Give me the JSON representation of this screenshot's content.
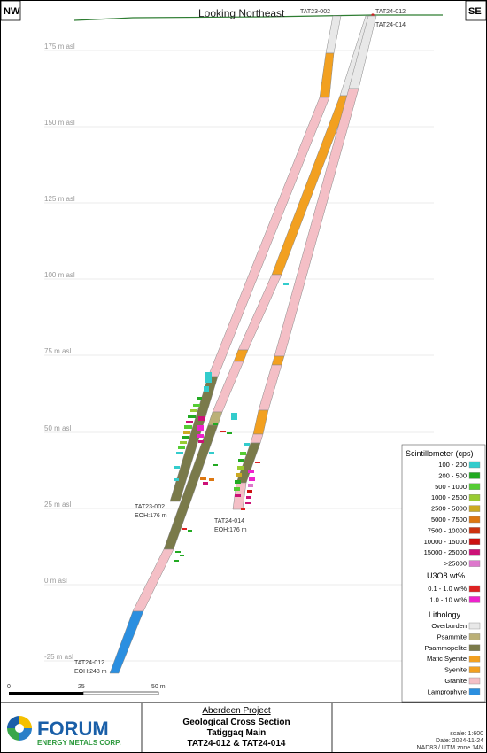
{
  "header": {
    "title": "Looking Northeast",
    "corner_left": "NW",
    "corner_right": "SE"
  },
  "elevation_labels": [
    "175  m asl",
    "150  m asl",
    "125  m asl",
    "100  m asl",
    "75  m asl",
    "50  m asl",
    "25  m asl",
    "0  m asl",
    "-25  m asl"
  ],
  "drillholes": {
    "tat23_002": {
      "collar_label": "TAT23-002",
      "end_label": "TAT23-002",
      "eoh": "EOH:176  m"
    },
    "tat24_012": {
      "collar_label": "TAT24-012",
      "end_label": "TAT24-012",
      "eoh": "EOH:248  m"
    },
    "tat24_014": {
      "collar_label": "TAT24-014",
      "end_label": "TAT24-014",
      "eoh": "EOH:176  m"
    }
  },
  "scale_bar": {
    "labels": [
      "0",
      "25",
      "50 m"
    ]
  },
  "legend": {
    "scint_title": "Scintillometer (cps)",
    "scint_items": [
      {
        "label": "100 - 200",
        "color": "#33cccc"
      },
      {
        "label": "200 - 500",
        "color": "#22aa22"
      },
      {
        "label": "500 - 1000",
        "color": "#55cc33"
      },
      {
        "label": "1000 - 2500",
        "color": "#99cc33"
      },
      {
        "label": "2500 - 5000",
        "color": "#ccaa22"
      },
      {
        "label": "5000 - 7500",
        "color": "#dd7711"
      },
      {
        "label": "7500 - 10000",
        "color": "#cc3311"
      },
      {
        "label": "10000 - 15000",
        "color": "#cc1111"
      },
      {
        "label": "15000 - 25000",
        "color": "#cc1177"
      },
      {
        "label": ">25000",
        "color": "#dd77cc"
      }
    ],
    "u3o8_title": "U3O8 wt%",
    "u3o8_items": [
      {
        "label": "0.1 - 1.0 wt%",
        "color": "#dd2222"
      },
      {
        "label": "1.0 - 10 wt%",
        "color": "#ee22cc"
      }
    ],
    "litho_title": "Lithology",
    "litho_items": [
      {
        "label": "Overburden",
        "color": "#e8e8e8"
      },
      {
        "label": "Psammite",
        "color": "#bbb077"
      },
      {
        "label": "Psammopelite",
        "color": "#7a7a4a"
      },
      {
        "label": "Mafic Syenite",
        "color": "#f2a020"
      },
      {
        "label": "Syenite",
        "color": "#f2a020"
      },
      {
        "label": "Granite",
        "color": "#f4bfc6"
      },
      {
        "label": "Lamprophyre",
        "color": "#2b8fe0"
      }
    ]
  },
  "title_block": {
    "company_name": "FORUM",
    "company_sub": "ENERGY METALS CORP.",
    "project": "Aberdeen Project",
    "line1": "Geological Cross Section",
    "line2": "Tatiggaq Main",
    "line3": "TAT24-012 & TAT24-014",
    "scale": "scale: 1:600",
    "date": "Date: 2024-11-24",
    "datum": "NAD83 / UTM zone 14N"
  }
}
